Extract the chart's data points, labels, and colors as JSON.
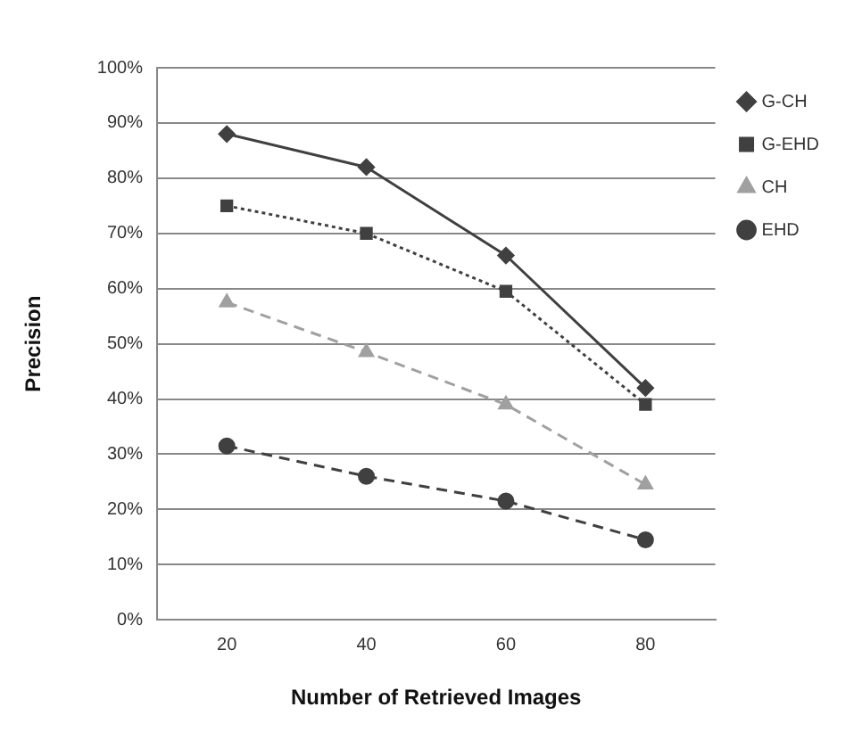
{
  "chart_data": {
    "type": "line",
    "xlabel": "Number of Retrieved Images",
    "ylabel": "Precision",
    "categories": [
      "20",
      "40",
      "60",
      "80"
    ],
    "ylim": [
      0,
      100
    ],
    "yticks": [
      {
        "value": 0,
        "label": "0%"
      },
      {
        "value": 10,
        "label": "10%"
      },
      {
        "value": 20,
        "label": "20%"
      },
      {
        "value": 30,
        "label": "30%"
      },
      {
        "value": 40,
        "label": "40%"
      },
      {
        "value": 50,
        "label": "50%"
      },
      {
        "value": 60,
        "label": "60%"
      },
      {
        "value": 70,
        "label": "70%"
      },
      {
        "value": 80,
        "label": "80%"
      },
      {
        "value": 90,
        "label": "90%"
      },
      {
        "value": 100,
        "label": "100%"
      }
    ],
    "grid": "y",
    "legend": "top right",
    "series": [
      {
        "name": "G-CH",
        "color": "#404040",
        "marker": "diamond",
        "line_style": "solid",
        "values": [
          88,
          82,
          66,
          42
        ]
      },
      {
        "name": "G-EHD",
        "color": "#404040",
        "marker": "square",
        "line_style": "dotted",
        "values": [
          75,
          70,
          59.5,
          39
        ]
      },
      {
        "name": "CH",
        "color": "#a0a0a0",
        "marker": "triangle",
        "line_style": "dashed",
        "values": [
          57.5,
          48.5,
          39,
          24.5
        ]
      },
      {
        "name": "EHD",
        "color": "#404040",
        "marker": "circle",
        "line_style": "dashed",
        "values": [
          31.5,
          26,
          21.5,
          14.5
        ]
      }
    ]
  }
}
